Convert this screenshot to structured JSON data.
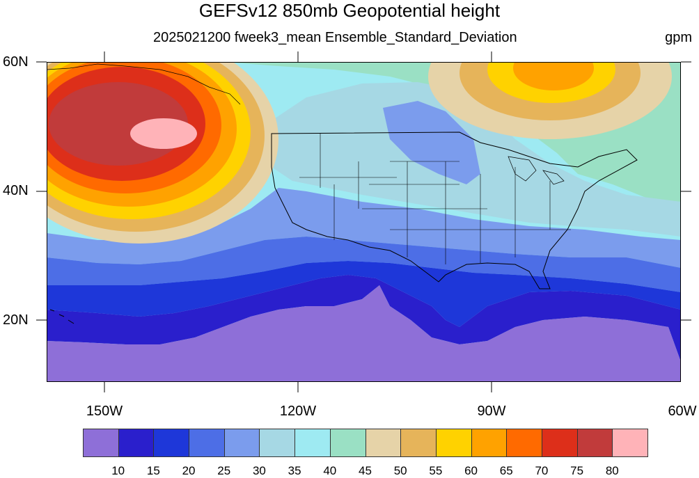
{
  "title": "GEFSv12 850mb Geopotential height",
  "subtitle": "2025021200 fweek3_mean Ensemble_Standard_Deviation",
  "units": "gpm",
  "lat_labels": [
    "60N",
    "40N",
    "20N"
  ],
  "lon_labels": [
    "150W",
    "120W",
    "90W",
    "60W"
  ],
  "map": {
    "lon_range": [
      -159,
      -60
    ],
    "lat_range": [
      10,
      60
    ],
    "projection": "cylindrical-equidistant",
    "contour_colors": [
      "#8e6fd8",
      "#2a1fcc",
      "#1e37d9",
      "#4d6ee6",
      "#7b9ced",
      "#a6d8e4",
      "#9eeaf2",
      "#9ae0c4",
      "#e6d3a8",
      "#e6b45a",
      "#ffd200",
      "#ffa200",
      "#ff6a00",
      "#dd2f1a",
      "#c13b3b",
      "#ffb3b8"
    ]
  },
  "colorbar": {
    "levels": [
      "10",
      "15",
      "20",
      "25",
      "30",
      "35",
      "40",
      "45",
      "50",
      "55",
      "60",
      "65",
      "70",
      "75",
      "80"
    ],
    "colors": [
      "#8e6fd8",
      "#2a1fcc",
      "#1e37d9",
      "#4d6ee6",
      "#7b9ced",
      "#a6d8e4",
      "#9eeaf2",
      "#9ae0c4",
      "#e6d3a8",
      "#e6b45a",
      "#ffd200",
      "#ffa200",
      "#ff6a00",
      "#dd2f1a",
      "#c13b3b",
      "#ffb3b8"
    ]
  }
}
